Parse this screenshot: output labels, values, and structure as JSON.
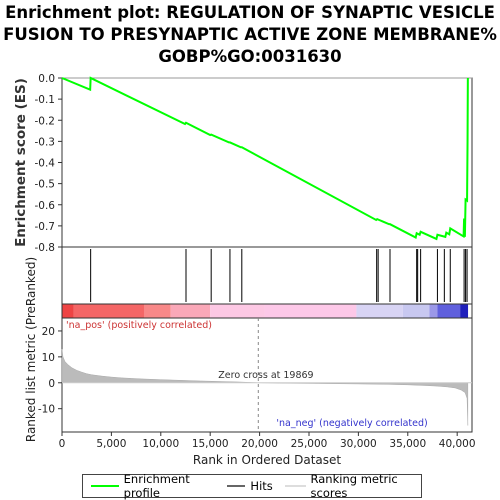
{
  "title_lines": [
    "Enrichment plot: REGULATION OF SYNAPTIC VESICLE",
    "FUSION TO PRESYNAPTIC ACTIVE ZONE MEMBRANE%",
    "GOBP%GO:0031630"
  ],
  "colors": {
    "es_line": "#00ff00",
    "hits": "#000000",
    "ranked_fill": "#bbbbbb",
    "zero_line": "#888888",
    "pos_label": "#cc3333",
    "neg_label": "#3333cc"
  },
  "chart_data": [
    {
      "type": "line",
      "name": "enrichment-score",
      "ylabel": "Enrichment score (ES)",
      "ylim": [
        -0.8,
        0.0
      ],
      "yticks": [
        0.0,
        -0.1,
        -0.2,
        -0.3,
        -0.4,
        -0.5,
        -0.6,
        -0.7,
        -0.8
      ],
      "ytick_labels": [
        "0.0",
        "-0.1",
        "-0.2",
        "-0.3",
        "-0.4",
        "-0.5",
        "-0.6",
        "-0.7",
        "-0.8"
      ],
      "grid": false,
      "x": [
        0,
        2850,
        2900,
        12450,
        12550,
        15000,
        15100,
        16900,
        17000,
        18100,
        18200,
        31800,
        31900,
        33100,
        33200,
        35800,
        35900,
        36200,
        36300,
        37900,
        38000,
        38800,
        38900,
        39200,
        39300,
        40650,
        40700,
        40780,
        40850,
        40950,
        41000,
        41050,
        41080
      ],
      "y": [
        0.0,
        -0.055,
        0.0,
        -0.218,
        -0.212,
        -0.27,
        -0.268,
        -0.305,
        -0.305,
        -0.328,
        -0.328,
        -0.672,
        -0.668,
        -0.692,
        -0.692,
        -0.755,
        -0.735,
        -0.742,
        -0.728,
        -0.762,
        -0.742,
        -0.752,
        -0.732,
        -0.74,
        -0.712,
        -0.75,
        -0.665,
        -0.752,
        -0.575,
        -0.578,
        -0.58,
        -0.3,
        0.0
      ]
    },
    {
      "type": "scatter",
      "name": "hits",
      "x": [
        2900,
        12550,
        15100,
        17000,
        18200,
        31850,
        32000,
        33200,
        35900,
        36000,
        36300,
        38000,
        38700,
        39300,
        40700,
        40850,
        41000
      ]
    },
    {
      "type": "area",
      "name": "ranked-list-metric",
      "xlabel": "Rank in Ordered Dataset",
      "ylabel": "Ranked list metric (PreRanked)",
      "xlim": [
        0,
        41500
      ],
      "ylim": [
        -19,
        25
      ],
      "xticks": [
        0,
        5000,
        10000,
        15000,
        20000,
        25000,
        30000,
        35000,
        40000
      ],
      "xtick_labels": [
        "0",
        "5,000",
        "10,000",
        "15,000",
        "20,000",
        "25,000",
        "30,000",
        "35,000",
        "40,000"
      ],
      "yticks": [
        20,
        10,
        0,
        -10
      ],
      "ytick_labels": [
        "20",
        "10",
        "0",
        "-10"
      ],
      "x": [
        0,
        100,
        300,
        600,
        1000,
        1500,
        2000,
        2500,
        3000,
        4000,
        5000,
        6000,
        7000,
        8000,
        10000,
        12000,
        14000,
        16000,
        18000,
        19869,
        22000,
        26000,
        30000,
        33000,
        35000,
        37000,
        38000,
        39000,
        39800,
        40400,
        40800,
        41000,
        41080
      ],
      "values": [
        13,
        10,
        8.2,
        7,
        5.8,
        4.8,
        4.1,
        3.5,
        3.1,
        2.6,
        2.2,
        1.9,
        1.7,
        1.5,
        1.2,
        0.95,
        0.7,
        0.5,
        0.3,
        0,
        -0.15,
        -0.3,
        -0.45,
        -0.6,
        -0.8,
        -1.1,
        -1.3,
        -1.6,
        -2.0,
        -2.8,
        -3.8,
        -6.0,
        -16.5
      ],
      "zero_cross_label": "Zero cross at 19869",
      "zero_cross_x": 19869,
      "pos_label": "'na_pos' (positively correlated)",
      "neg_label": "'na_neg' (negatively correlated)"
    }
  ],
  "heatmap_bar": {
    "segments": [
      {
        "start": 0,
        "end": 1200,
        "color": "#ee4444"
      },
      {
        "start": 1200,
        "end": 8300,
        "color": "#f46666"
      },
      {
        "start": 8300,
        "end": 11000,
        "color": "#f88888"
      },
      {
        "start": 11000,
        "end": 15000,
        "color": "#faa8b8"
      },
      {
        "start": 15000,
        "end": 20500,
        "color": "#fdc8e4"
      },
      {
        "start": 20500,
        "end": 29800,
        "color": "#fdc8e8"
      },
      {
        "start": 29800,
        "end": 34500,
        "color": "#d8d4f4"
      },
      {
        "start": 34500,
        "end": 37200,
        "color": "#c8c8f0"
      },
      {
        "start": 37200,
        "end": 38000,
        "color": "#9b98e8"
      },
      {
        "start": 38000,
        "end": 40300,
        "color": "#6060dd"
      },
      {
        "start": 40300,
        "end": 41100,
        "color": "#2020bb"
      }
    ]
  },
  "legend": {
    "items": [
      {
        "label": "Enrichment profile"
      },
      {
        "label": "Hits"
      },
      {
        "label": "Ranking metric scores"
      }
    ]
  }
}
